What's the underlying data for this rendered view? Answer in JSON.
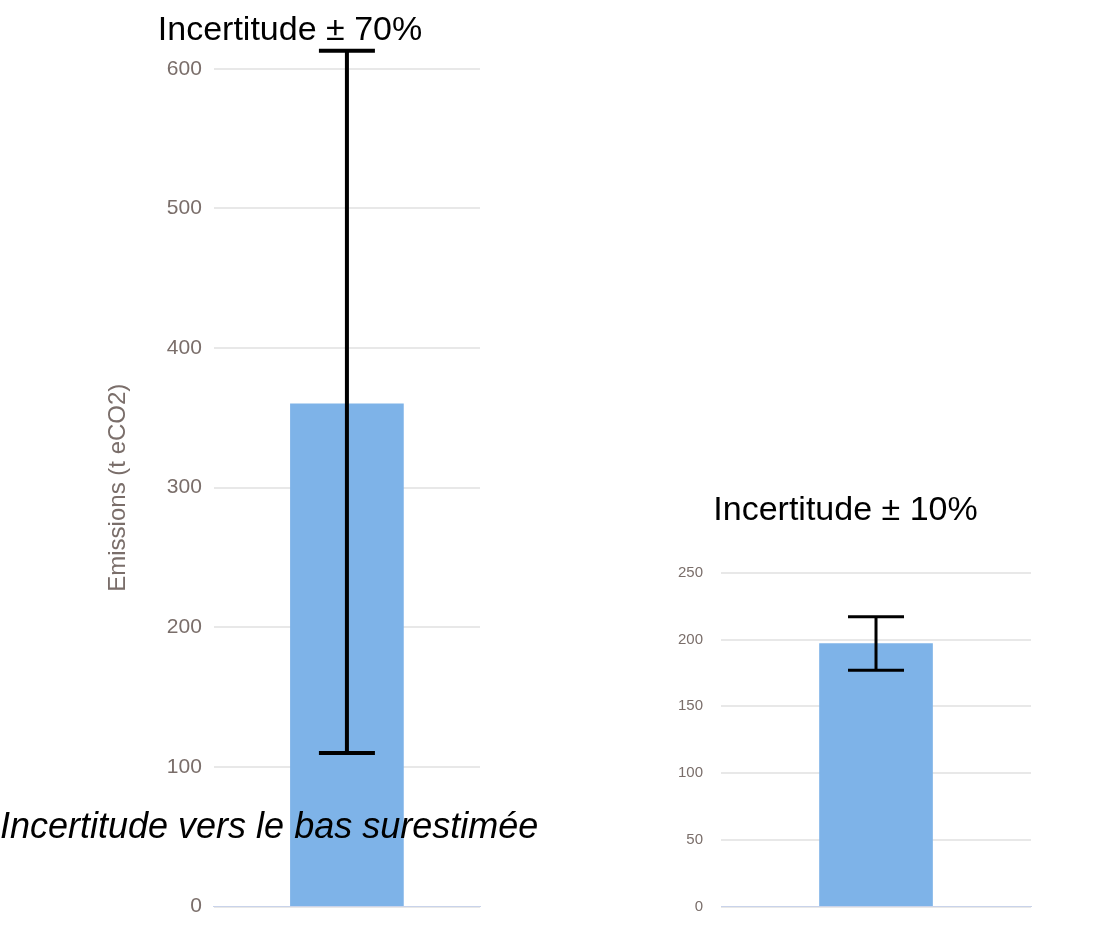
{
  "chart_data": [
    {
      "type": "bar",
      "title": "Incertitude ± 70%",
      "ylabel": "Emissions (t eCO2)",
      "categories": [
        null
      ],
      "values": [
        360
      ],
      "color": "#7eb3e8",
      "errors": [
        [
          110,
          613
        ]
      ],
      "ylim": [
        0,
        600
      ],
      "yticks": [
        0,
        100,
        200,
        300,
        400,
        500,
        600
      ],
      "grid": "y",
      "annotations": [
        "Incertitude vers le bas surestimée"
      ]
    },
    {
      "type": "bar",
      "title": "Incertitude ± 10%",
      "categories": [
        null
      ],
      "values": [
        197
      ],
      "color": "#7eb3e8",
      "errors": [
        [
          177,
          217
        ]
      ],
      "ylim": [
        0,
        250
      ],
      "yticks": [
        0,
        50,
        100,
        150,
        200,
        250
      ],
      "grid": "y"
    }
  ]
}
